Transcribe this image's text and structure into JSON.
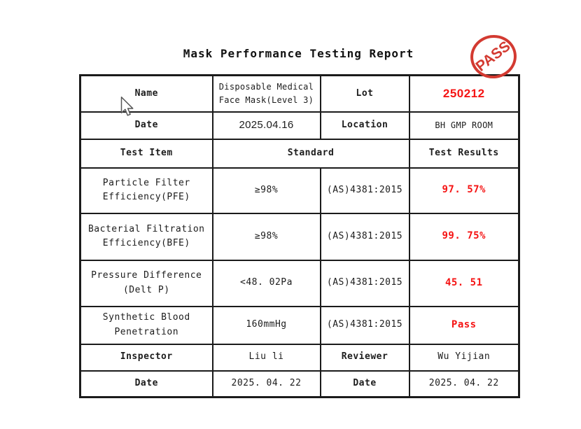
{
  "page": {
    "title": "Mask Performance Testing Report"
  },
  "stamp": {
    "label": "PASS",
    "color": "#d33a31"
  },
  "colors": {
    "red_text": "#f51414",
    "border": "#1b1b1b"
  },
  "table": {
    "rows": [
      {
        "cells": [
          {
            "text": "Name",
            "kind": "head",
            "name": "name-label"
          },
          {
            "text": "Disposable Medical\nFace Mask(Level 3)",
            "kind": "small",
            "name": "product-name-value"
          },
          {
            "text": "Lot",
            "kind": "head",
            "name": "lot-label"
          },
          {
            "text": "250212",
            "kind": "sans-lot",
            "name": "lot-number-value"
          }
        ]
      },
      {
        "cells": [
          {
            "text": "Date",
            "kind": "head",
            "name": "date-label"
          },
          {
            "text": "2025.04.16",
            "kind": "sans-date",
            "name": "test-date-value"
          },
          {
            "text": "Location",
            "kind": "head",
            "name": "location-label"
          },
          {
            "text": "BH GMP ROOM",
            "kind": "small",
            "name": "location-value"
          }
        ]
      },
      {
        "cells": [
          {
            "text": "Test Item",
            "kind": "head",
            "name": "test-item-header"
          },
          {
            "text": "Standard",
            "kind": "head",
            "name": "standard-header",
            "colspan": 2
          },
          {
            "text": "Test Results",
            "kind": "head",
            "name": "test-results-header"
          }
        ]
      },
      {
        "cells": [
          {
            "text": "Particle Filter\nEfficiency(PFE)",
            "kind": "value",
            "name": "pfe-item"
          },
          {
            "text": "≥98%",
            "kind": "value",
            "name": "pfe-standard"
          },
          {
            "text": "(AS)4381:2015",
            "kind": "value",
            "name": "pfe-method"
          },
          {
            "text": "97. 57%",
            "kind": "red",
            "name": "pfe-result"
          }
        ]
      },
      {
        "cells": [
          {
            "text": "Bacterial Filtration\nEfficiency(BFE)",
            "kind": "value",
            "name": "bfe-item"
          },
          {
            "text": "≥98%",
            "kind": "value",
            "name": "bfe-standard"
          },
          {
            "text": "(AS)4381:2015",
            "kind": "value",
            "name": "bfe-method"
          },
          {
            "text": "99. 75%",
            "kind": "red",
            "name": "bfe-result"
          }
        ]
      },
      {
        "cells": [
          {
            "text": "Pressure  Difference\n(Delt P)",
            "kind": "value",
            "name": "delt-p-item"
          },
          {
            "text": "<48. 02Pa",
            "kind": "value",
            "name": "delt-p-standard"
          },
          {
            "text": "(AS)4381:2015",
            "kind": "value",
            "name": "delt-p-method"
          },
          {
            "text": "45. 51",
            "kind": "red",
            "name": "delt-p-result"
          }
        ]
      },
      {
        "cells": [
          {
            "text": "Synthetic Blood\nPenetration",
            "kind": "value",
            "name": "blood-item"
          },
          {
            "text": "160mmHg",
            "kind": "value",
            "name": "blood-standard"
          },
          {
            "text": "(AS)4381:2015",
            "kind": "value",
            "name": "blood-method"
          },
          {
            "text": "Pass",
            "kind": "red",
            "name": "blood-result"
          }
        ]
      },
      {
        "cells": [
          {
            "text": "Inspector",
            "kind": "head",
            "name": "inspector-label"
          },
          {
            "text": "Liu li",
            "kind": "value",
            "name": "inspector-value"
          },
          {
            "text": "Reviewer",
            "kind": "head",
            "name": "reviewer-label"
          },
          {
            "text": "Wu Yijian",
            "kind": "value",
            "name": "reviewer-value"
          }
        ]
      },
      {
        "cells": [
          {
            "text": "Date",
            "kind": "head",
            "name": "inspect-date-label"
          },
          {
            "text": "2025. 04. 22",
            "kind": "value",
            "name": "inspect-date-value"
          },
          {
            "text": "Date",
            "kind": "head",
            "name": "review-date-label"
          },
          {
            "text": "2025. 04. 22",
            "kind": "value",
            "name": "review-date-value"
          }
        ]
      }
    ]
  }
}
